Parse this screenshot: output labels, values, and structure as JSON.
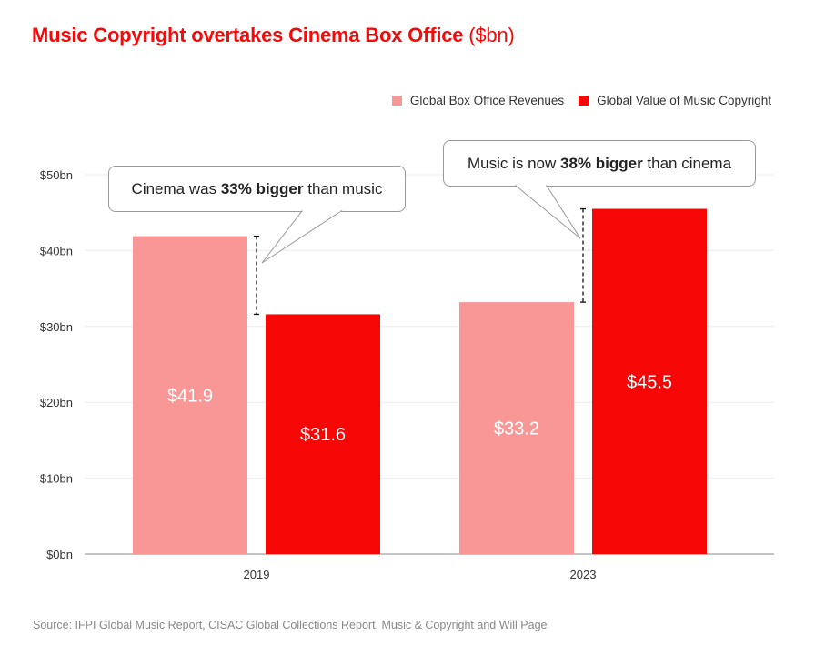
{
  "title": {
    "main": "Music Copyright overtakes Cinema Box Office",
    "unit": "($bn)"
  },
  "legend": [
    {
      "label": "Global Box Office Revenues",
      "color": "#f99696"
    },
    {
      "label": "Global Value of Music Copyright",
      "color": "#f70606"
    }
  ],
  "callouts": [
    {
      "pre": "Cinema was ",
      "bold": "33% bigger",
      "post": " than music"
    },
    {
      "pre": "Music is now ",
      "bold": "38% bigger",
      "post": " than cinema"
    }
  ],
  "source": "Source: IFPI Global Music Report, CISAC Global Collections Report, Music & Copyright and Will Page",
  "chart_data": {
    "type": "bar",
    "title": "Music Copyright overtakes Cinema Box Office ($bn)",
    "xlabel": "",
    "ylabel": "",
    "categories": [
      "2019",
      "2023"
    ],
    "series": [
      {
        "name": "Global Box Office Revenues",
        "values": [
          41.9,
          33.2
        ],
        "labels": [
          "$41.9",
          "$33.2"
        ],
        "color": "#f99696"
      },
      {
        "name": "Global Value of Music Copyright",
        "values": [
          31.6,
          45.5
        ],
        "labels": [
          "$31.6",
          "$45.5"
        ],
        "color": "#f70606"
      }
    ],
    "ylim": [
      0,
      50
    ],
    "yticks": [
      0,
      10,
      20,
      30,
      40,
      50
    ],
    "ytick_labels": [
      "$0bn",
      "$10bn",
      "$20bn",
      "$30bn",
      "$40bn",
      "$50bn"
    ],
    "grid": true,
    "legend_position": "top-right",
    "annotations": [
      "Cinema was 33% bigger than music",
      "Music is now 38% bigger than cinema"
    ]
  }
}
